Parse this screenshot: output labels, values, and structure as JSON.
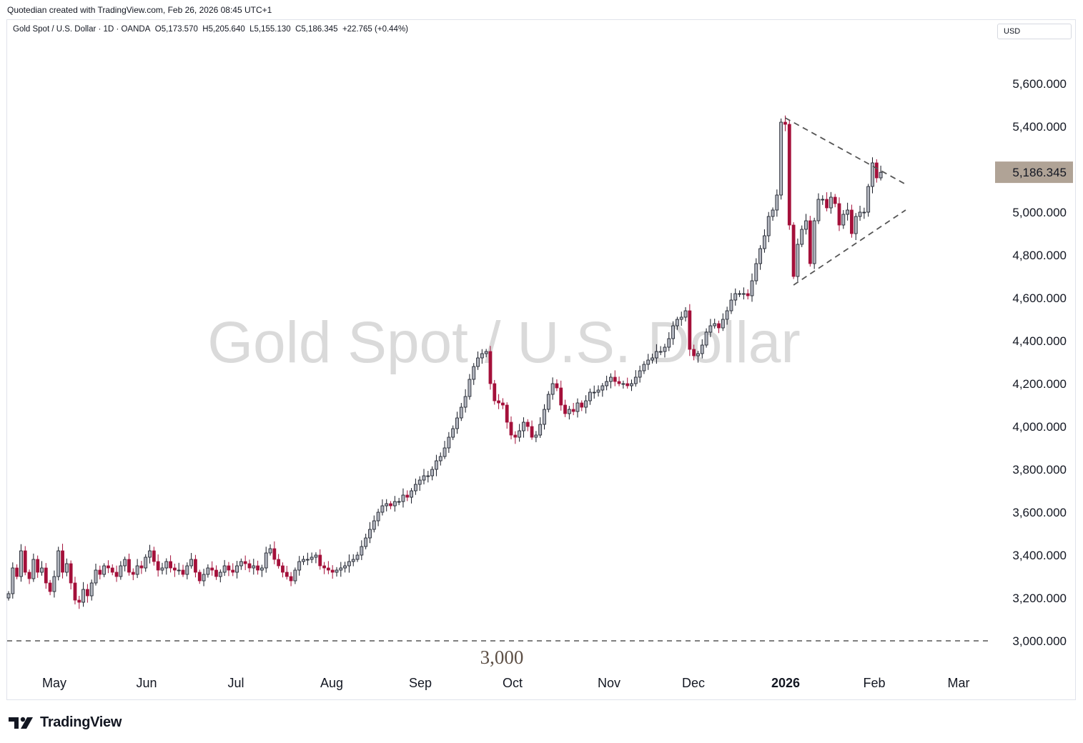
{
  "header": {
    "caption": "Quotedian created with TradingView.com, Feb 26, 2026 08:45 UTC+1"
  },
  "legend": {
    "symbol": "Gold Spot / U.S. Dollar · 1D · OANDA",
    "open": "O5,173.570",
    "high": "H5,205.640",
    "low": "L5,155.130",
    "close": "C5,186.345",
    "change": "+22.765 (+0.44%)"
  },
  "currency_button": "USD",
  "watermark": "Gold Spot / U.S. Dollar",
  "brand": "TradingView",
  "colors": {
    "up_body": "#b2b5be",
    "down_body": "#a4103a",
    "wick_up": "#131722",
    "wick_down": "#a4103a",
    "last_price_bg": "#b0a396",
    "dashed": "#555555",
    "watermark": "#dadada",
    "annotation": "#5d4f45"
  },
  "chart_data": {
    "type": "candlestick",
    "title": "Gold Spot / U.S. Dollar",
    "ylim": [
      2950,
      5660
    ],
    "y_ticks": [
      "3,000.000",
      "3,200.000",
      "3,400.000",
      "3,600.000",
      "3,800.000",
      "4,000.000",
      "4,200.000",
      "4,400.000",
      "4,600.000",
      "4,800.000",
      "5,000.000",
      "5,200.000",
      "5,400.000",
      "5,600.000"
    ],
    "x_labels": [
      "May",
      "Jun",
      "Jul",
      "Aug",
      "Sep",
      "Oct",
      "Nov",
      "Dec",
      "2026",
      "Feb",
      "Mar"
    ],
    "last_price": "5,186.345",
    "last_price_value": 5186.345,
    "horizontal_line": {
      "value": 3000,
      "label": "3,000",
      "style": "dashed"
    },
    "triangle": {
      "upper_start": {
        "date": "2026-01-29",
        "value": 5440
      },
      "upper_end": {
        "date": "2026-03-06",
        "value": 5130
      },
      "lower_start": {
        "date": "2026-02-02",
        "value": 4660
      },
      "lower_end": {
        "date": "2026-03-06",
        "value": 5010
      }
    },
    "close_series": [
      3220,
      3340,
      3300,
      3420,
      3320,
      3290,
      3380,
      3320,
      3340,
      3270,
      3230,
      3300,
      3420,
      3320,
      3360,
      3270,
      3190,
      3180,
      3240,
      3210,
      3270,
      3330,
      3310,
      3350,
      3340,
      3320,
      3300,
      3350,
      3380,
      3320,
      3310,
      3350,
      3340,
      3390,
      3420,
      3370,
      3330,
      3340,
      3370,
      3340,
      3330,
      3330,
      3310,
      3350,
      3380,
      3320,
      3280,
      3310,
      3340,
      3330,
      3300,
      3320,
      3350,
      3330,
      3320,
      3350,
      3370,
      3360,
      3340,
      3350,
      3330,
      3340,
      3410,
      3430,
      3380,
      3350,
      3320,
      3300,
      3280,
      3330,
      3370,
      3380,
      3380,
      3390,
      3400,
      3350,
      3340,
      3330,
      3320,
      3330,
      3340,
      3350,
      3370,
      3380,
      3400,
      3440,
      3480,
      3520,
      3560,
      3600,
      3630,
      3640,
      3630,
      3650,
      3650,
      3680,
      3670,
      3700,
      3730,
      3750,
      3770,
      3770,
      3800,
      3840,
      3860,
      3900,
      3950,
      3990,
      4040,
      4090,
      4140,
      4220,
      4280,
      4320,
      4340,
      4350,
      4200,
      4120,
      4110,
      4100,
      4020,
      3960,
      3950,
      3980,
      4020,
      4000,
      3950,
      3960,
      4010,
      4080,
      4150,
      4200,
      4180,
      4100,
      4060,
      4080,
      4070,
      4110,
      4090,
      4120,
      4160,
      4160,
      4170,
      4190,
      4210,
      4230,
      4210,
      4200,
      4200,
      4190,
      4200,
      4230,
      4260,
      4290,
      4310,
      4320,
      4350,
      4350,
      4370,
      4410,
      4470,
      4500,
      4510,
      4540,
      4360,
      4330,
      4340,
      4380,
      4440,
      4470,
      4480,
      4460,
      4500,
      4540,
      4590,
      4620,
      4620,
      4620,
      4610,
      4680,
      4760,
      4830,
      4890,
      4980,
      5010,
      5080,
      5420,
      5410,
      4940,
      4700,
      4850,
      4920,
      4960,
      4760,
      4960,
      5060,
      5060,
      5020,
      5070,
      5040,
      4940,
      4990,
      5010,
      4900,
      4980,
      5000,
      5000,
      5120,
      5230,
      5160,
      5186
    ]
  }
}
